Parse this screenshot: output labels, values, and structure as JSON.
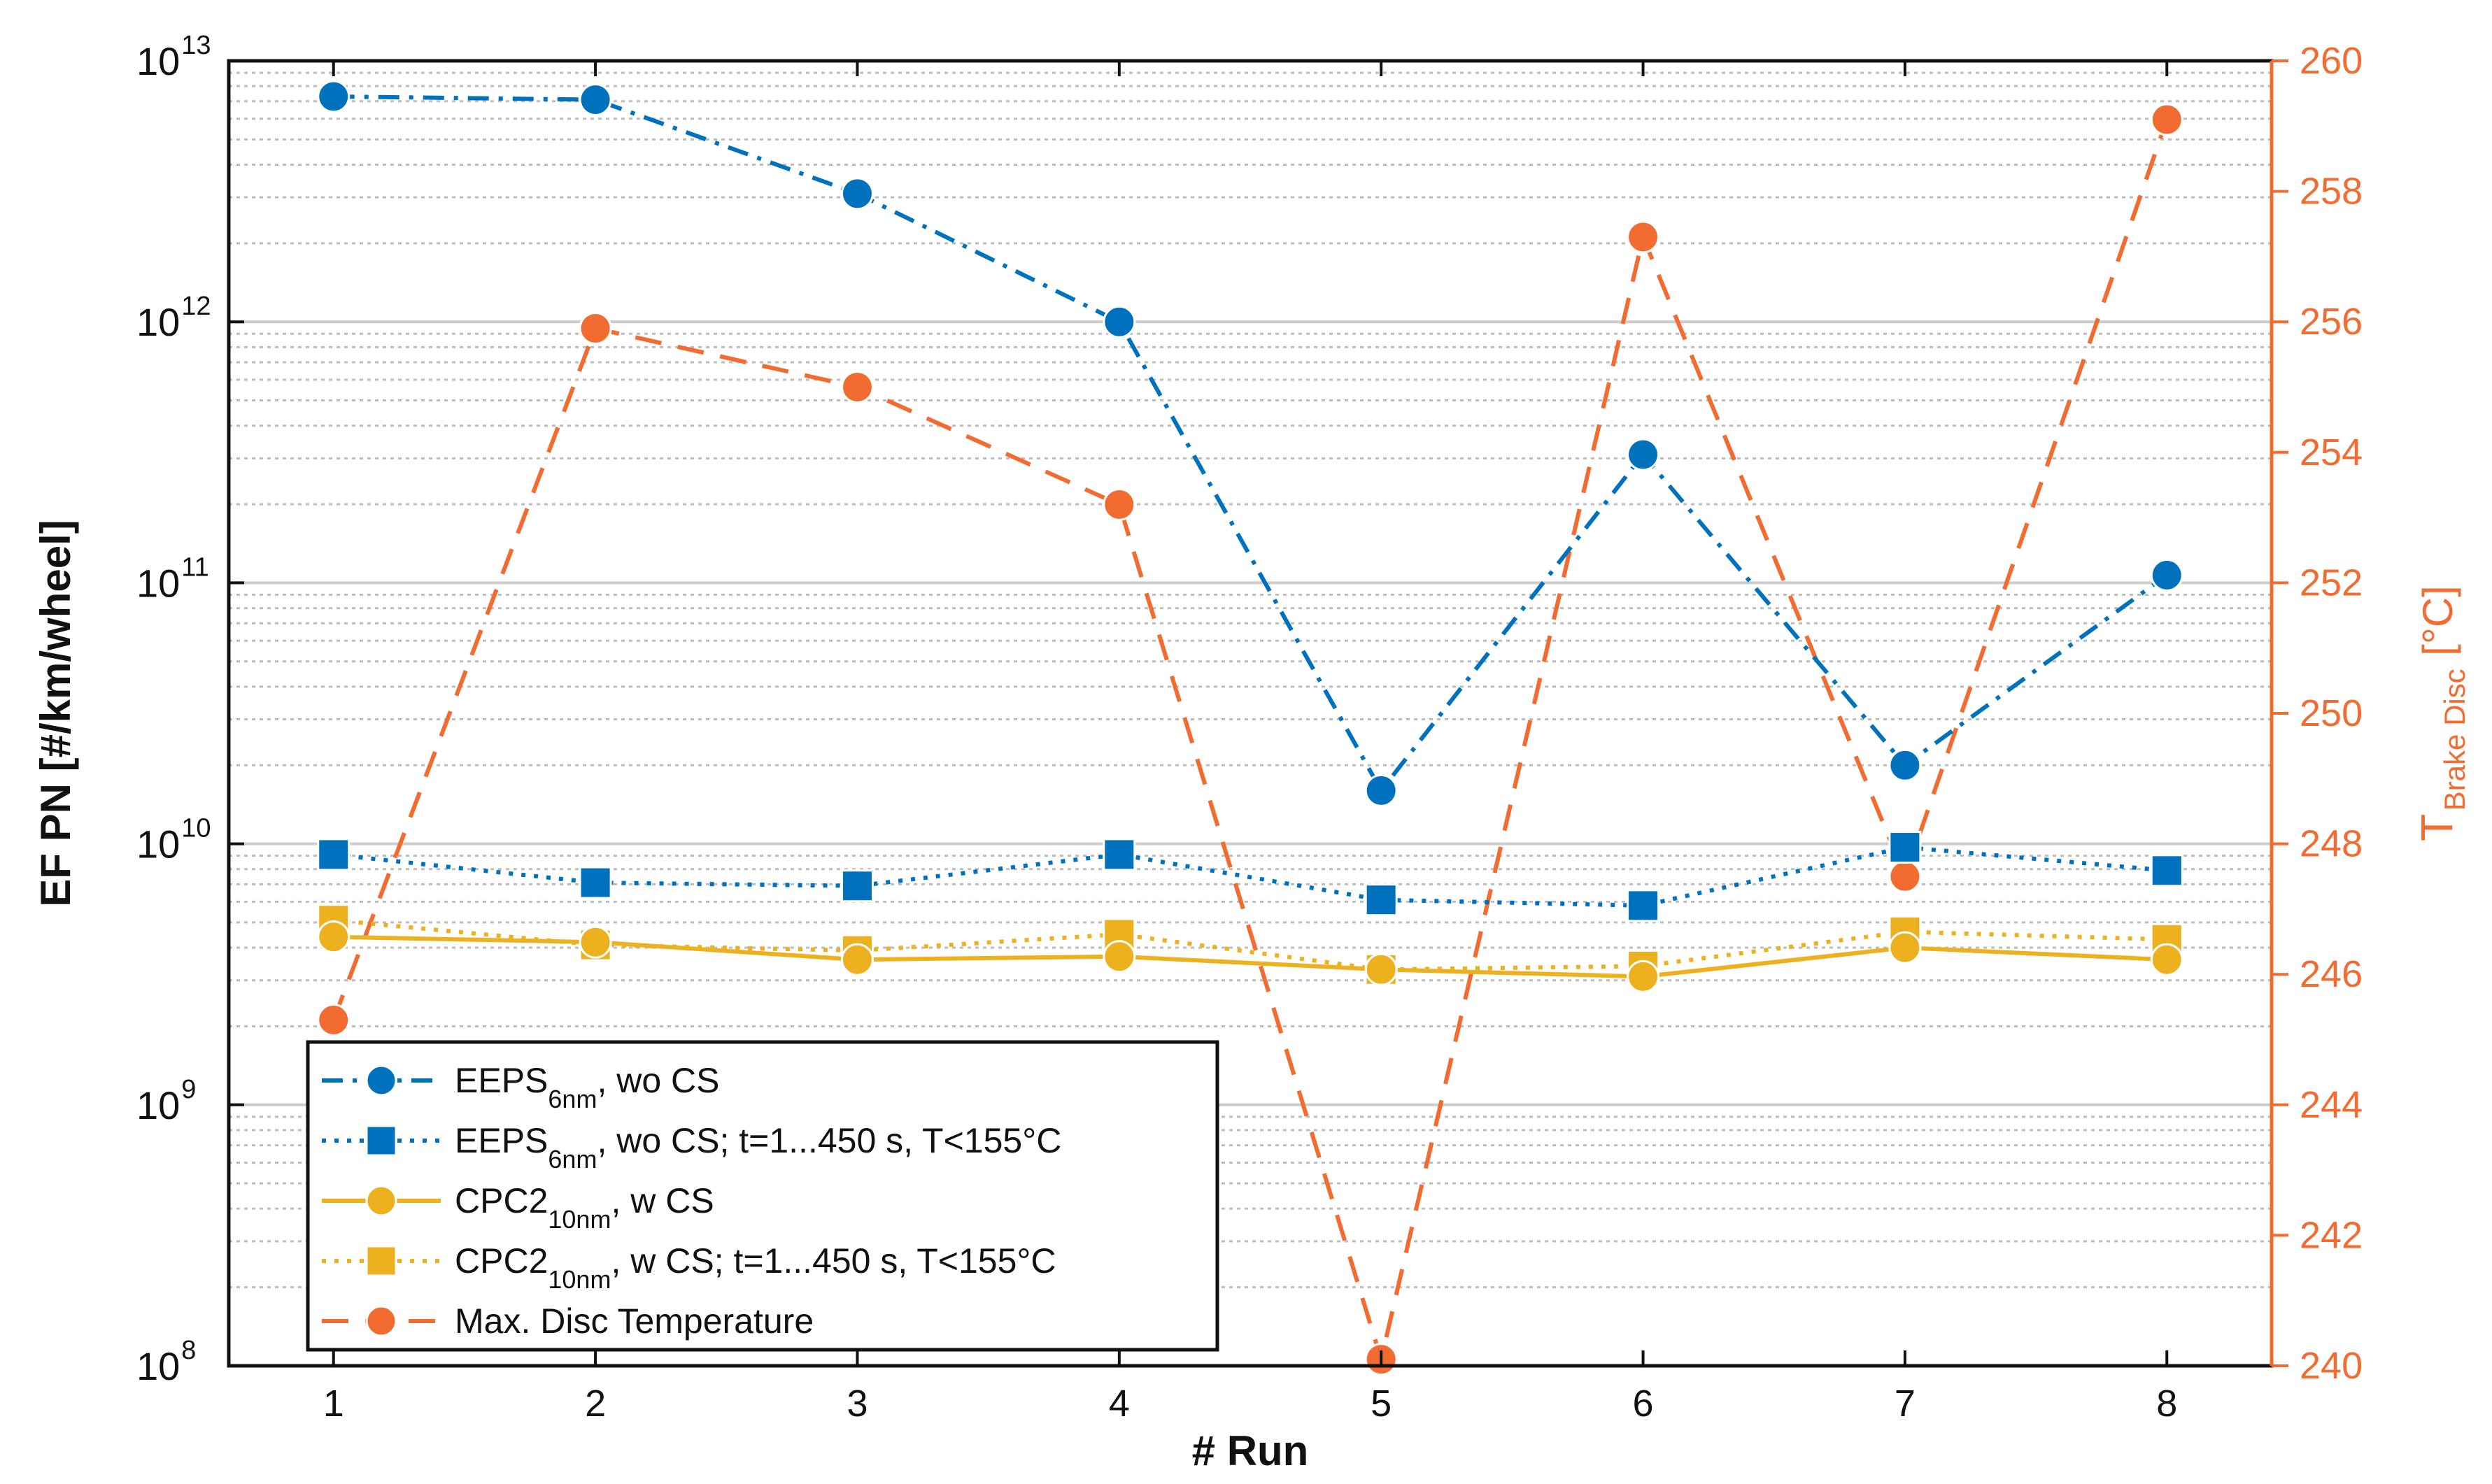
{
  "chart_data": {
    "type": "line",
    "x": [
      1,
      2,
      3,
      4,
      5,
      6,
      7,
      8
    ],
    "xlabel": "# Run",
    "ylabel_left": "EF PN [#/km/wheel]",
    "ylabel_right_main": "T",
    "ylabel_right_sub": "Brake Disc",
    "ylabel_right_unit": "[°C]",
    "yscale_left": "log",
    "ylim_left": [
      100000000,
      10000000000000
    ],
    "ylim_right": [
      240,
      260
    ],
    "x_ticks": [
      "1",
      "2",
      "3",
      "4",
      "5",
      "6",
      "7",
      "8"
    ],
    "left_ticks": [
      {
        "base": "10",
        "exp": "8"
      },
      {
        "base": "10",
        "exp": "9"
      },
      {
        "base": "10",
        "exp": "10"
      },
      {
        "base": "10",
        "exp": "11"
      },
      {
        "base": "10",
        "exp": "12"
      },
      {
        "base": "10",
        "exp": "13"
      }
    ],
    "right_ticks": [
      "240",
      "242",
      "244",
      "246",
      "248",
      "250",
      "252",
      "254",
      "256",
      "258",
      "260"
    ],
    "grid": true,
    "legend_position": "bottom-left",
    "series": [
      {
        "name": "EEPS",
        "sub": "6nm",
        "suffix": ", wo CS",
        "axis": "left",
        "color": "#0072BD",
        "line": "dashdot",
        "marker": "circle",
        "values": [
          7300000000000,
          7100000000000,
          3100000000000,
          1000000000000,
          16000000000,
          310000000000,
          20000000000,
          107000000000
        ]
      },
      {
        "name": "EEPS",
        "sub": "6nm",
        "suffix": ", wo CS; t=1...450 s, T<155°C",
        "axis": "left",
        "color": "#0072BD",
        "line": "dotted",
        "marker": "square",
        "values": [
          9100000000,
          7100000000,
          6900000000,
          9100000000,
          6100000000,
          5800000000,
          9700000000,
          7900000000
        ]
      },
      {
        "name": "CPC2",
        "sub": "10nm",
        "suffix": ", w CS",
        "axis": "left",
        "color": "#EDB120",
        "line": "solid",
        "marker": "circle",
        "values": [
          4400000000,
          4200000000,
          3600000000,
          3700000000,
          3300000000,
          3100000000,
          4000000000,
          3600000000
        ]
      },
      {
        "name": "CPC2",
        "sub": "10nm",
        "suffix": ", w CS; t=1...450 s, T<155°C",
        "axis": "left",
        "color": "#EDB120",
        "line": "dotted",
        "marker": "square",
        "values": [
          5100000000,
          4100000000,
          3900000000,
          4500000000,
          3300000000,
          3400000000,
          4600000000,
          4300000000
        ]
      },
      {
        "name": "Max. Disc Temperature",
        "sub": "",
        "suffix": "",
        "axis": "right",
        "color": "#F26B30",
        "line": "dashed",
        "marker": "circle",
        "values": [
          245.3,
          255.9,
          255.0,
          253.2,
          240.1,
          257.3,
          247.5,
          259.1
        ]
      }
    ]
  },
  "colors": {
    "right_axis": "#F26B30",
    "grid_major": "#cccccc",
    "grid_minor": "#bdbdbd"
  }
}
